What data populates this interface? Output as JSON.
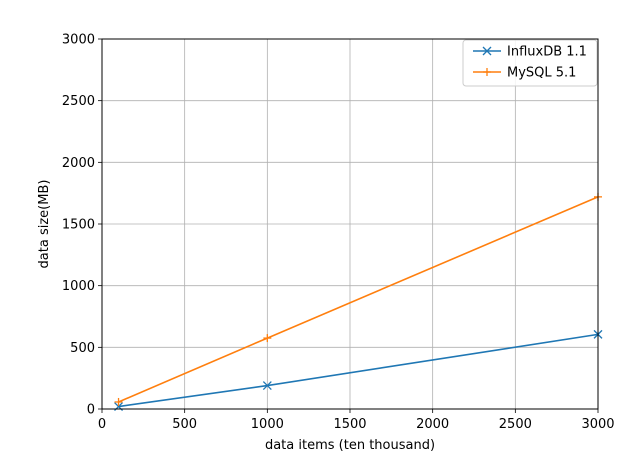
{
  "chart_data": {
    "type": "line",
    "title": "",
    "xlabel": "data items (ten thousand)",
    "ylabel": "data size(MB)",
    "xlim": [
      0,
      3000
    ],
    "ylim": [
      0,
      3000
    ],
    "xticks": [
      "0",
      "500",
      "1000",
      "1500",
      "2000",
      "2500",
      "3000"
    ],
    "yticks": [
      "0",
      "500",
      "1000",
      "1500",
      "2000",
      "2500",
      "3000"
    ],
    "grid": true,
    "legend_position": "top-right",
    "series": [
      {
        "name": "InfluxDB 1.1",
        "color": "#1f77b4",
        "marker": "x",
        "x": [
          100,
          1000,
          3000
        ],
        "y": [
          20,
          190,
          605
        ]
      },
      {
        "name": "MySQL 5.1",
        "color": "#ff7f0e",
        "marker": "plus",
        "x": [
          100,
          1000,
          3000
        ],
        "y": [
          57,
          575,
          1720
        ]
      }
    ]
  }
}
